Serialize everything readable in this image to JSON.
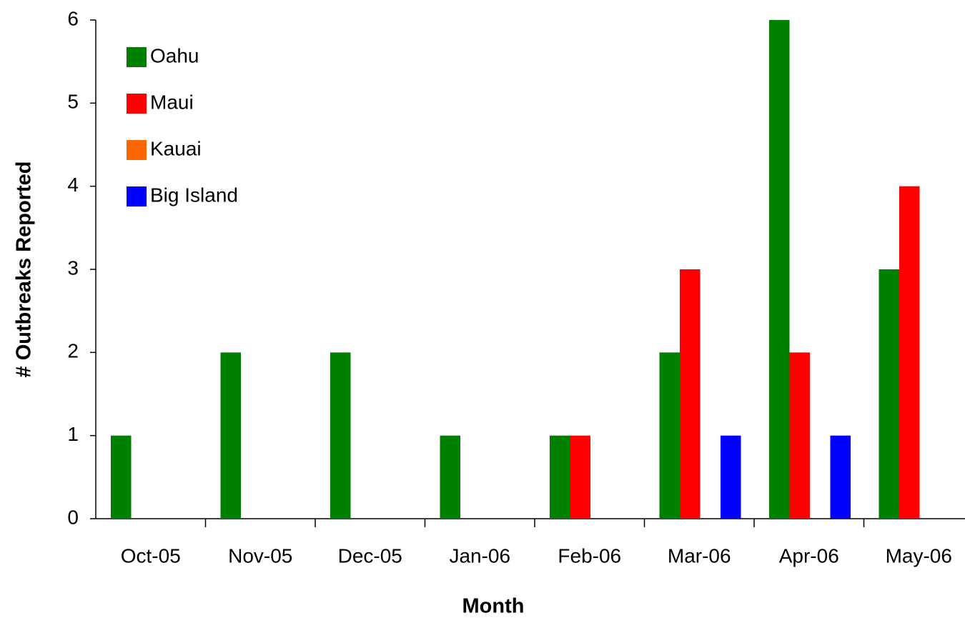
{
  "chart_data": {
    "type": "bar",
    "x_label": "Month",
    "y_label": "# Outbreaks Reported",
    "categories": [
      "Oct-05",
      "Nov-05",
      "Dec-05",
      "Jan-06",
      "Feb-06",
      "Mar-06",
      "Apr-06",
      "May-06"
    ],
    "series": [
      {
        "name": "Oahu",
        "color": "#008000",
        "values": [
          1,
          2,
          2,
          1,
          1,
          2,
          6,
          3
        ]
      },
      {
        "name": "Maui",
        "color": "#ff0000",
        "values": [
          0,
          0,
          0,
          0,
          1,
          3,
          2,
          4
        ]
      },
      {
        "name": "Kauai",
        "color": "#ff6600",
        "values": [
          0,
          0,
          0,
          0,
          0,
          0,
          0,
          0
        ]
      },
      {
        "name": "Big Island",
        "color": "#0000ff",
        "values": [
          0,
          0,
          0,
          0,
          0,
          1,
          1,
          0
        ]
      }
    ],
    "ylim": [
      0,
      6
    ],
    "yticks": [
      0,
      1,
      2,
      3,
      4,
      5,
      6
    ],
    "grid": false,
    "legend": "upper left"
  }
}
